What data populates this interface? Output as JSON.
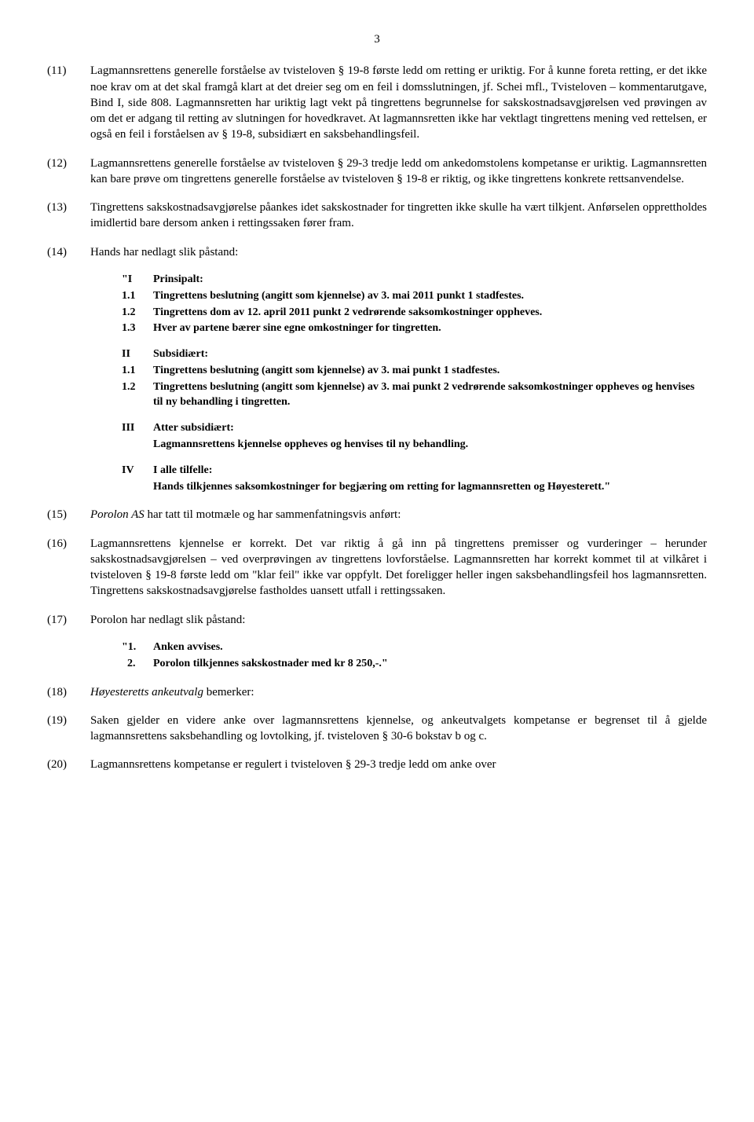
{
  "pageNumber": "3",
  "paragraphs": {
    "p11": {
      "num": "(11)",
      "text": "Lagmannsrettens generelle forståelse av tvisteloven § 19-8 første ledd om retting er uriktig. For å kunne foreta retting, er det ikke noe krav om at det skal framgå klart at det dreier seg om en feil i domsslutningen, jf. Schei mfl., Tvisteloven – kommentarutgave, Bind I, side 808. Lagmannsretten har uriktig lagt vekt på tingrettens begrunnelse for sakskostnadsavgjørelsen ved prøvingen av om det er adgang til retting av slutningen for hovedkravet. At lagmannsretten ikke har vektlagt tingrettens mening ved rettelsen, er også en feil i forståelsen av § 19-8, subsidiært en saksbehandlingsfeil."
    },
    "p12": {
      "num": "(12)",
      "text": "Lagmannsrettens generelle forståelse av tvisteloven § 29-3 tredje ledd om ankedomstolens kompetanse er uriktig. Lagmannsretten kan bare prøve om tingrettens generelle forståelse av tvisteloven § 19-8 er riktig, og ikke tingrettens konkrete rettsanvendelse."
    },
    "p13": {
      "num": "(13)",
      "text": "Tingrettens sakskostnadsavgjørelse påankes idet sakskostnader for tingretten ikke skulle ha vært tilkjent. Anførselen opprettholdes imidlertid bare dersom anken i rettingssaken fører fram."
    },
    "p14": {
      "num": "(14)",
      "text": "Hands har nedlagt slik påstand:"
    },
    "p15": {
      "num": "(15)",
      "party": "Porolon AS",
      "text": " har tatt til motmæle og har sammenfatningsvis anført:"
    },
    "p16": {
      "num": "(16)",
      "text": "Lagmannsrettens kjennelse er korrekt. Det var riktig å gå inn på tingrettens premisser og vurderinger – herunder sakskostnadsavgjørelsen – ved overprøvingen av tingrettens lovforståelse. Lagmannsretten har korrekt kommet til at vilkåret i tvisteloven § 19-8 første ledd om \"klar feil\" ikke var oppfylt. Det foreligger heller ingen saksbehandlingsfeil hos lagmannsretten. Tingrettens sakskostnadsavgjørelse fastholdes uansett utfall i rettingssaken."
    },
    "p17": {
      "num": "(17)",
      "text": "Porolon har nedlagt slik påstand:"
    },
    "p18": {
      "num": "(18)",
      "party": "Høyesteretts ankeutvalg",
      "text": " bemerker:"
    },
    "p19": {
      "num": "(19)",
      "text": "Saken gjelder en videre anke over lagmannsrettens kjennelse, og ankeutvalgets kompetanse er begrenset til å gjelde lagmannsrettens saksbehandling og lovtolking, jf. tvisteloven § 30-6 bokstav b og c."
    },
    "p20": {
      "num": "(20)",
      "text": "Lagmannsrettens kompetanse er regulert i tvisteloven § 29-3 tredje ledd om anke over"
    }
  },
  "claims14": {
    "g1": {
      "head_label": "\"I",
      "head_text": "Prinsipalt:",
      "r1_label": "1.1",
      "r1_text": "Tingrettens beslutning (angitt som kjennelse) av 3. mai 2011 punkt 1 stadfestes.",
      "r2_label": "1.2",
      "r2_text": "Tingrettens dom av 12. april 2011 punkt 2 vedrørende saksomkostninger oppheves.",
      "r3_label": "1.3",
      "r3_text": "Hver av partene bærer sine egne omkostninger for tingretten."
    },
    "g2": {
      "head_label": "II",
      "head_text": "Subsidiært:",
      "r1_label": "1.1",
      "r1_text": "Tingrettens beslutning (angitt som kjennelse) av 3. mai punkt 1 stadfestes.",
      "r2_label": "1.2",
      "r2_text": "Tingrettens beslutning (angitt som kjennelse) av 3. mai punkt 2 vedrørende saksomkostninger oppheves og henvises til ny behandling i tingretten."
    },
    "g3": {
      "head_label": "III",
      "head_text": "Atter subsidiært:",
      "body": "Lagmannsrettens kjennelse oppheves og henvises til ny behandling."
    },
    "g4": {
      "head_label": "IV",
      "head_text": "I alle tilfelle:",
      "body": "Hands tilkjennes saksomkostninger for begjæring om retting for lagmannsretten og Høyesterett.\""
    }
  },
  "claims17": {
    "r1_label": "\"1.",
    "r1_text": "Anken avvises.",
    "r2_label": "  2.",
    "r2_text": "Porolon tilkjennes sakskostnader med kr 8 250,-.\""
  }
}
